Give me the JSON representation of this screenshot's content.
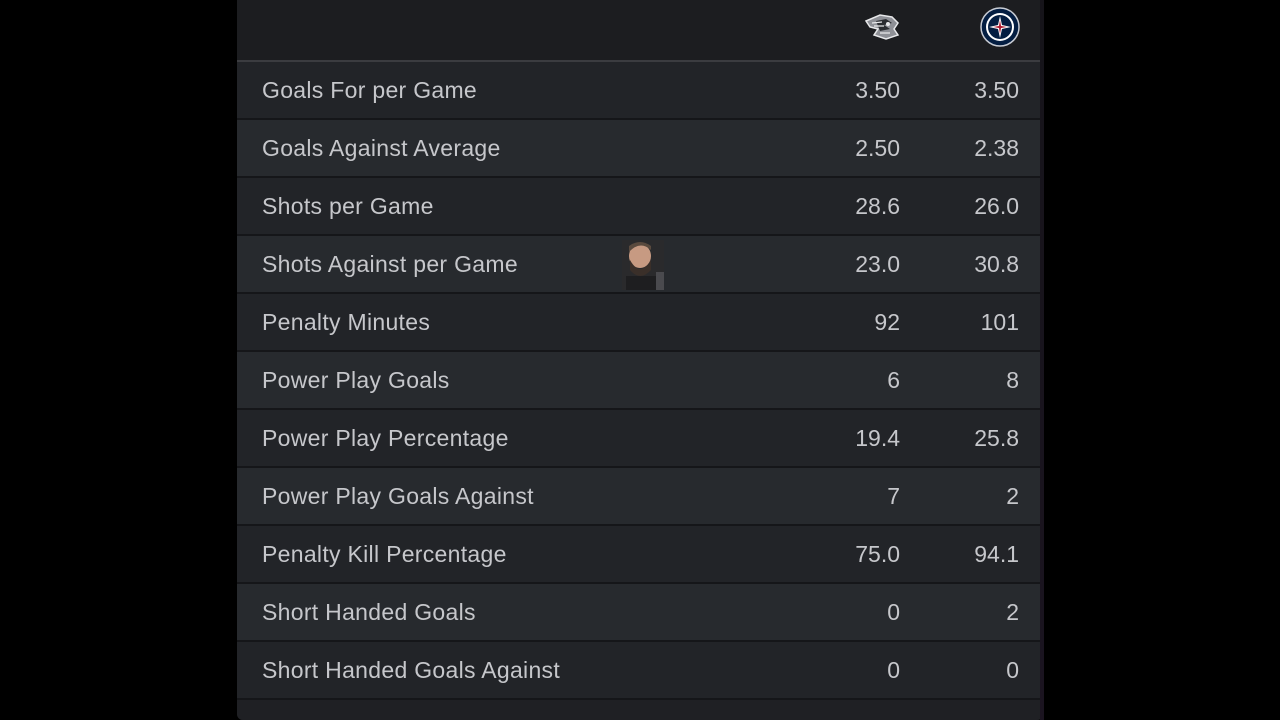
{
  "header": {
    "away_logo_icon": "team-logo-storm-icon",
    "home_logo_icon": "team-logo-jets-icon"
  },
  "stats": [
    {
      "label": "Goals For per Game",
      "away": "3.50",
      "home": "3.50"
    },
    {
      "label": "Goals Against Average",
      "away": "2.50",
      "home": "2.38"
    },
    {
      "label": "Shots per Game",
      "away": "28.6",
      "home": "26.0"
    },
    {
      "label": "Shots Against per Game",
      "away": "23.0",
      "home": "30.8"
    },
    {
      "label": "Penalty Minutes",
      "away": "92",
      "home": "101"
    },
    {
      "label": "Power Play Goals",
      "away": "6",
      "home": "8"
    },
    {
      "label": "Power Play Percentage",
      "away": "19.4",
      "home": "25.8"
    },
    {
      "label": "Power Play Goals Against",
      "away": "7",
      "home": "2"
    },
    {
      "label": "Penalty Kill Percentage",
      "away": "75.0",
      "home": "94.1"
    },
    {
      "label": "Short Handed Goals",
      "away": "0",
      "home": "2"
    },
    {
      "label": "Short Handed Goals Against",
      "away": "0",
      "home": "0"
    }
  ],
  "colors": {
    "background": "#000000",
    "panel": "#1c1d20",
    "row_odd": "#222428",
    "row_even": "#272a2e",
    "text": "#c6c7cb",
    "home_logo_navy": "#041e42",
    "home_logo_red": "#ac162c"
  }
}
